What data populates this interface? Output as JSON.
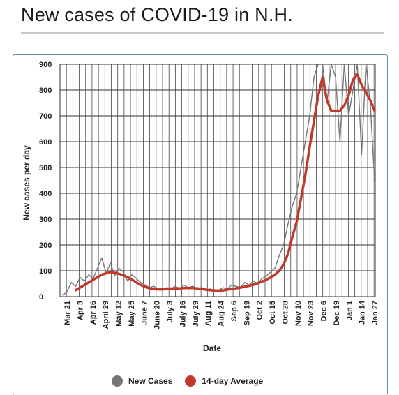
{
  "header": {
    "title": "New cases of COVID-19 in N.H."
  },
  "legend": {
    "items": [
      {
        "label": "New Cases",
        "color": "#757575"
      },
      {
        "label": "14-day Average",
        "color": "#c0392b"
      }
    ]
  },
  "chart_data": {
    "type": "line",
    "title": "New cases of COVID-19 in N.H.",
    "xlabel": "Date",
    "ylabel": "New cases per day",
    "ylim": [
      0,
      900
    ],
    "yticks": [
      0,
      100,
      200,
      300,
      400,
      500,
      600,
      700,
      800,
      900
    ],
    "xtick_labels": [
      "Mar 21",
      "Apr 3",
      "Apr 16",
      "April 29",
      "May 12",
      "May 25",
      "June 7",
      "June 20",
      "July 3",
      "July 16",
      "July 29",
      "Aug 11",
      "Aug 24",
      "Sep 6",
      "Sep 19",
      "Oct 2",
      "Oct 15",
      "Oct 28",
      "Nov 10",
      "Nov 23",
      "Dec 6",
      "Dec 19",
      "Jan 1",
      "Jan 14",
      "Jan 27"
    ],
    "grid": true,
    "legend_position": "bottom",
    "series": [
      {
        "name": "New Cases",
        "color": "#757575",
        "x": [
          "Mar 21",
          "Mar 25",
          "Mar 29",
          "Apr 3",
          "Apr 7",
          "Apr 11",
          "Apr 16",
          "Apr 20",
          "Apr 24",
          "April 29",
          "May 3",
          "May 7",
          "May 12",
          "May 16",
          "May 20",
          "May 25",
          "May 29",
          "Jun 3",
          "June 7",
          "Jun 12",
          "Jun 16",
          "June 20",
          "Jun 25",
          "Jun 29",
          "July 3",
          "Jul 8",
          "Jul 12",
          "July 16",
          "Jul 21",
          "Jul 25",
          "July 29",
          "Aug 3",
          "Aug 7",
          "Aug 11",
          "Aug 16",
          "Aug 20",
          "Aug 24",
          "Aug 29",
          "Sep 2",
          "Sep 6",
          "Sep 11",
          "Sep 15",
          "Sep 19",
          "Sep 24",
          "Sep 28",
          "Oct 2",
          "Oct 6",
          "Oct 11",
          "Oct 15",
          "Oct 19",
          "Oct 24",
          "Oct 28",
          "Nov 1",
          "Nov 6",
          "Nov 10",
          "Nov 14",
          "Nov 19",
          "Nov 23",
          "Nov 27",
          "Dec 2",
          "Dec 6",
          "Dec 10",
          "Dec 15",
          "Dec 19",
          "Dec 23",
          "Dec 28",
          "Jan 1",
          "Jan 5",
          "Jan 10",
          "Jan 14",
          "Jan 18",
          "Jan 23",
          "Jan 27"
        ],
        "y": [
          5,
          20,
          55,
          40,
          75,
          60,
          85,
          70,
          110,
          150,
          90,
          130,
          80,
          110,
          95,
          60,
          85,
          70,
          55,
          45,
          35,
          40,
          30,
          25,
          35,
          30,
          40,
          30,
          45,
          35,
          40,
          30,
          35,
          25,
          30,
          20,
          25,
          35,
          30,
          45,
          40,
          35,
          55,
          45,
          60,
          50,
          70,
          80,
          95,
          110,
          160,
          200,
          280,
          350,
          400,
          500,
          600,
          700,
          850,
          900,
          900,
          750,
          900,
          850,
          600,
          900,
          700,
          800,
          900,
          550,
          900,
          750,
          450
        ]
      },
      {
        "name": "14-day Average",
        "color": "#c0392b",
        "x": [
          "Mar 21",
          "Mar 25",
          "Mar 29",
          "Apr 3",
          "Apr 7",
          "Apr 11",
          "Apr 16",
          "Apr 20",
          "Apr 24",
          "April 29",
          "May 3",
          "May 7",
          "May 12",
          "May 16",
          "May 20",
          "May 25",
          "May 29",
          "Jun 3",
          "June 7",
          "Jun 12",
          "Jun 16",
          "June 20",
          "Jun 25",
          "Jun 29",
          "July 3",
          "Jul 8",
          "Jul 12",
          "July 16",
          "Jul 21",
          "Jul 25",
          "July 29",
          "Aug 3",
          "Aug 7",
          "Aug 11",
          "Aug 16",
          "Aug 20",
          "Aug 24",
          "Aug 29",
          "Sep 2",
          "Sep 6",
          "Sep 11",
          "Sep 15",
          "Sep 19",
          "Sep 24",
          "Sep 28",
          "Oct 2",
          "Oct 6",
          "Oct 11",
          "Oct 15",
          "Oct 19",
          "Oct 24",
          "Oct 28",
          "Nov 1",
          "Nov 6",
          "Nov 10",
          "Nov 14",
          "Nov 19",
          "Nov 23",
          "Nov 27",
          "Dec 2",
          "Dec 6",
          "Dec 10",
          "Dec 15",
          "Dec 19",
          "Dec 23",
          "Dec 28",
          "Jan 1",
          "Jan 5",
          "Jan 10",
          "Jan 14",
          "Jan 18",
          "Jan 23",
          "Jan 27"
        ],
        "y": [
          null,
          null,
          null,
          25,
          35,
          45,
          55,
          65,
          75,
          85,
          90,
          95,
          92,
          88,
          82,
          75,
          65,
          55,
          45,
          38,
          32,
          30,
          28,
          28,
          30,
          31,
          32,
          32,
          33,
          33,
          33,
          32,
          30,
          27,
          25,
          24,
          23,
          24,
          27,
          30,
          32,
          35,
          38,
          42,
          46,
          52,
          58,
          65,
          75,
          85,
          100,
          125,
          165,
          230,
          290,
          380,
          470,
          580,
          680,
          780,
          850,
          760,
          720,
          720,
          720,
          740,
          780,
          840,
          860,
          820,
          790,
          760,
          720
        ]
      }
    ]
  }
}
